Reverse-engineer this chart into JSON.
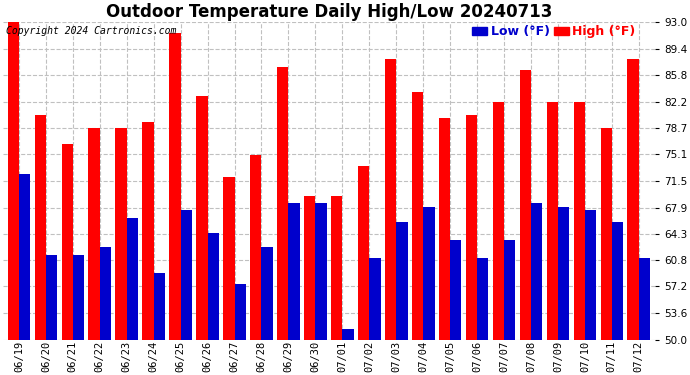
{
  "title": "Outdoor Temperature Daily High/Low 20240713",
  "copyright": "Copyright 2024 Cartronics.com",
  "legend_low": "Low (°F)",
  "legend_high": "High (°F)",
  "dates": [
    "06/19",
    "06/20",
    "06/21",
    "06/22",
    "06/23",
    "06/24",
    "06/25",
    "06/26",
    "06/27",
    "06/28",
    "06/29",
    "06/30",
    "07/01",
    "07/02",
    "07/03",
    "07/04",
    "07/05",
    "07/06",
    "07/07",
    "07/08",
    "07/09",
    "07/10",
    "07/11",
    "07/12"
  ],
  "highs": [
    93.0,
    80.5,
    76.5,
    78.7,
    78.7,
    79.5,
    91.5,
    83.0,
    72.0,
    75.0,
    87.0,
    69.5,
    69.5,
    73.5,
    88.0,
    83.5,
    80.0,
    80.5,
    82.2,
    86.5,
    82.2,
    82.2,
    78.7,
    88.0
  ],
  "lows": [
    72.5,
    61.5,
    61.5,
    62.5,
    66.5,
    59.0,
    67.5,
    64.5,
    57.5,
    62.5,
    68.5,
    68.5,
    51.5,
    61.0,
    66.0,
    68.0,
    63.5,
    61.0,
    63.5,
    68.5,
    68.0,
    67.5,
    66.0,
    61.0
  ],
  "high_color": "#ff0000",
  "low_color": "#0000cc",
  "background_color": "#ffffff",
  "grid_color": "#c0c0c0",
  "ylim": [
    50.0,
    93.0
  ],
  "yticks": [
    50.0,
    53.6,
    57.2,
    60.8,
    64.3,
    67.9,
    71.5,
    75.1,
    78.7,
    82.2,
    85.8,
    89.4,
    93.0
  ],
  "bar_width": 0.42,
  "title_fontsize": 12,
  "tick_fontsize": 7.5,
  "legend_fontsize": 9,
  "copyright_fontsize": 7
}
